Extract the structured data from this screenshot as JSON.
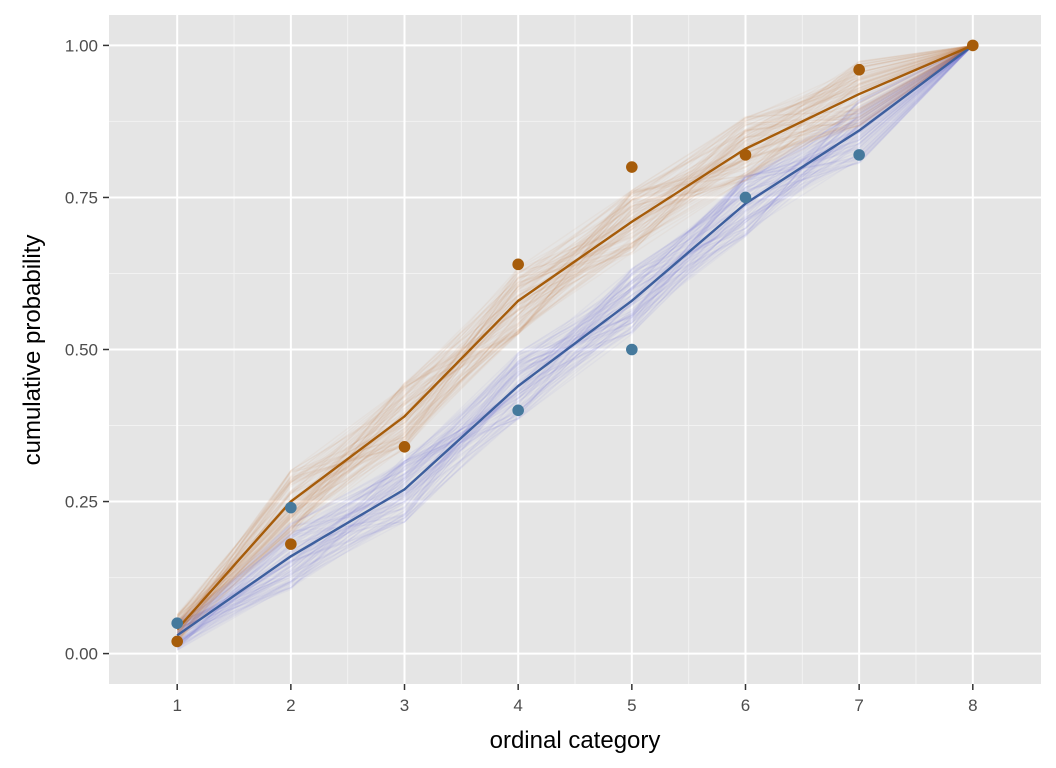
{
  "chart_data": {
    "type": "line",
    "title": "",
    "xlabel": "ordinal category",
    "ylabel": "cumulative probability",
    "xlim": [
      0.4,
      8.6
    ],
    "ylim": [
      -0.05,
      1.05
    ],
    "x_ticks": [
      1,
      2,
      3,
      4,
      5,
      6,
      7,
      8
    ],
    "x_tick_labels": [
      "1",
      "2",
      "3",
      "4",
      "5",
      "6",
      "7",
      "8"
    ],
    "y_ticks": [
      0,
      0.25,
      0.5,
      0.75,
      1.0
    ],
    "y_tick_labels": [
      "0.00",
      "0.25",
      "0.50",
      "0.75",
      "1.00"
    ],
    "grid": true,
    "legend": "none",
    "panel_background": "#e5e5e5",
    "gridline_color": "#ffffff",
    "series": [
      {
        "color": "#a65c0a",
        "draws_color": "#c47a32",
        "fitted": [
          0.04,
          0.25,
          0.39,
          0.58,
          0.71,
          0.83,
          0.92,
          1.0
        ],
        "observed": [
          0.02,
          0.18,
          0.34,
          0.64,
          0.8,
          0.82,
          0.96,
          1.0
        ]
      },
      {
        "color": "#3d5f9e",
        "draws_color": "#6a6ad2",
        "fitted": [
          0.03,
          0.16,
          0.27,
          0.44,
          0.58,
          0.74,
          0.86,
          1.0
        ],
        "observed": [
          0.05,
          0.24,
          null,
          0.4,
          0.5,
          0.75,
          0.82,
          null
        ]
      }
    ],
    "observed_point_colors": [
      "#a65c0a",
      "#45799c"
    ]
  }
}
